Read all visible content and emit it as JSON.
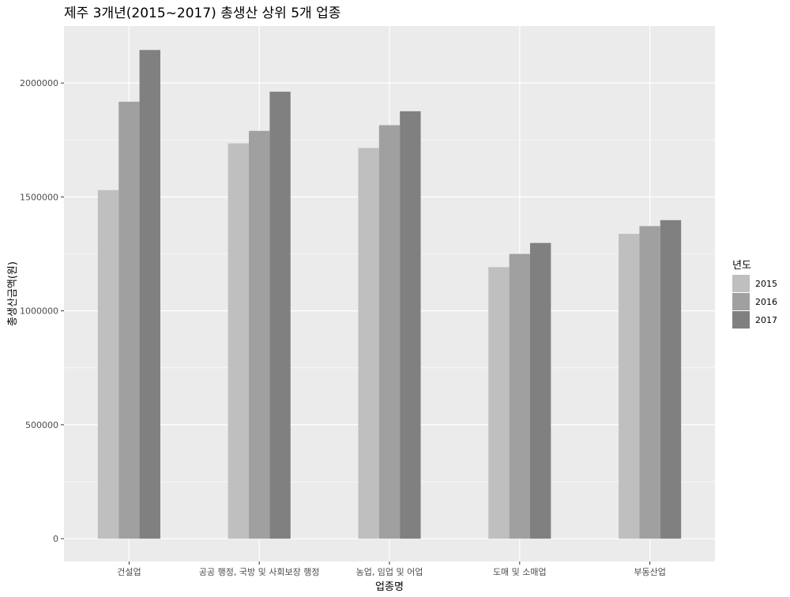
{
  "chart_data": {
    "type": "bar",
    "title": "제주 3개년(2015~2017) 총생산 상위 5개 업종",
    "xlabel": "업종명",
    "ylabel": "총생산금액(원)",
    "categories": [
      "건설업",
      "공공 행정, 국방 및 사회보장 행정",
      "농업, 임업 및 어업",
      "도매 및 소매업",
      "부동산업"
    ],
    "series": [
      {
        "name": "2015",
        "color": "#bfbfbf",
        "values": [
          1530000,
          1735000,
          1715000,
          1192000,
          1338000
        ]
      },
      {
        "name": "2016",
        "color": "#a0a0a0",
        "values": [
          1918000,
          1790000,
          1815000,
          1250000,
          1372000
        ]
      },
      {
        "name": "2017",
        "color": "#808080",
        "values": [
          2145000,
          1962000,
          1876000,
          1298000,
          1398000
        ]
      }
    ],
    "ylim": [
      -100000,
      2250000
    ],
    "yticks": [
      0,
      500000,
      1000000,
      1500000,
      2000000
    ],
    "ytick_labels": [
      "0",
      "500000",
      "1000000",
      "1500000",
      "2000000"
    ],
    "legend_title": "년도",
    "legend_position": "right",
    "grid": true,
    "panel_background": "#ebebeb",
    "grid_color": "#ffffff"
  }
}
